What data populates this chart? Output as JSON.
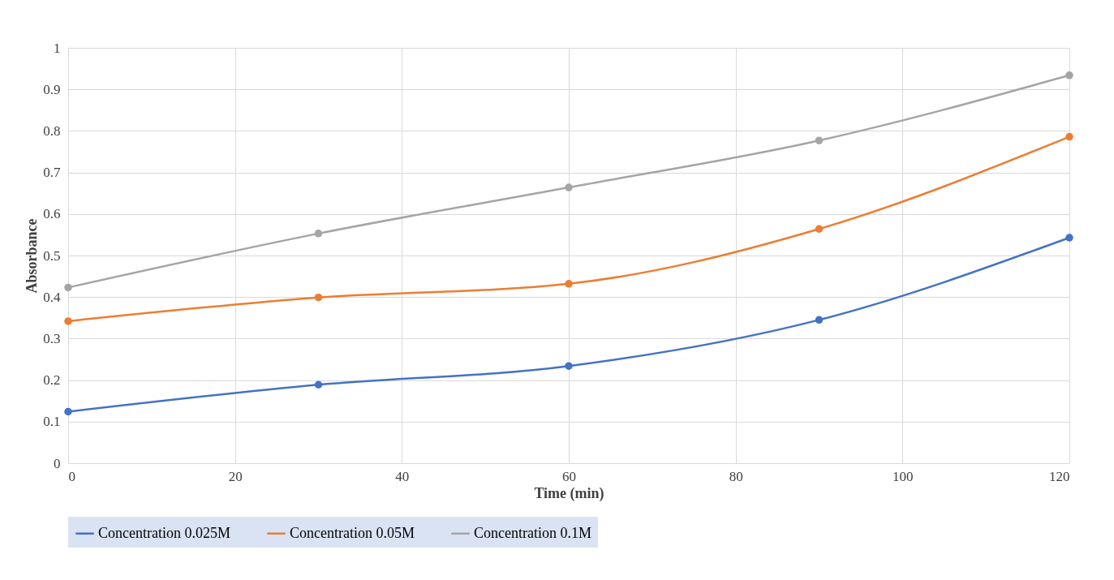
{
  "chart_data": {
    "type": "line",
    "xlabel": "Time (min)",
    "ylabel": "Absorbance",
    "x": [
      0,
      30,
      60,
      90,
      120
    ],
    "series": [
      {
        "name": "Concentration 0.025M",
        "color": "#4472c4",
        "values": [
          0.124,
          0.189,
          0.234,
          0.345,
          0.543
        ]
      },
      {
        "name": "Concentration 0.05M",
        "color": "#ed7d31",
        "values": [
          0.342,
          0.399,
          0.432,
          0.564,
          0.786
        ]
      },
      {
        "name": "Concentration 0.1M",
        "color": "#a5a5a5",
        "values": [
          0.423,
          0.553,
          0.664,
          0.777,
          0.934
        ]
      }
    ],
    "xlim": [
      0,
      120
    ],
    "xticks": [
      0,
      20,
      40,
      60,
      80,
      100,
      120
    ],
    "ylim": [
      0,
      1
    ],
    "yticks": [
      0,
      0.1,
      0.2,
      0.3,
      0.4,
      0.5,
      0.6,
      0.7,
      0.8,
      0.9,
      1
    ],
    "grid": true,
    "legend": "bottom",
    "marker": "circle",
    "line_style": "solid"
  }
}
